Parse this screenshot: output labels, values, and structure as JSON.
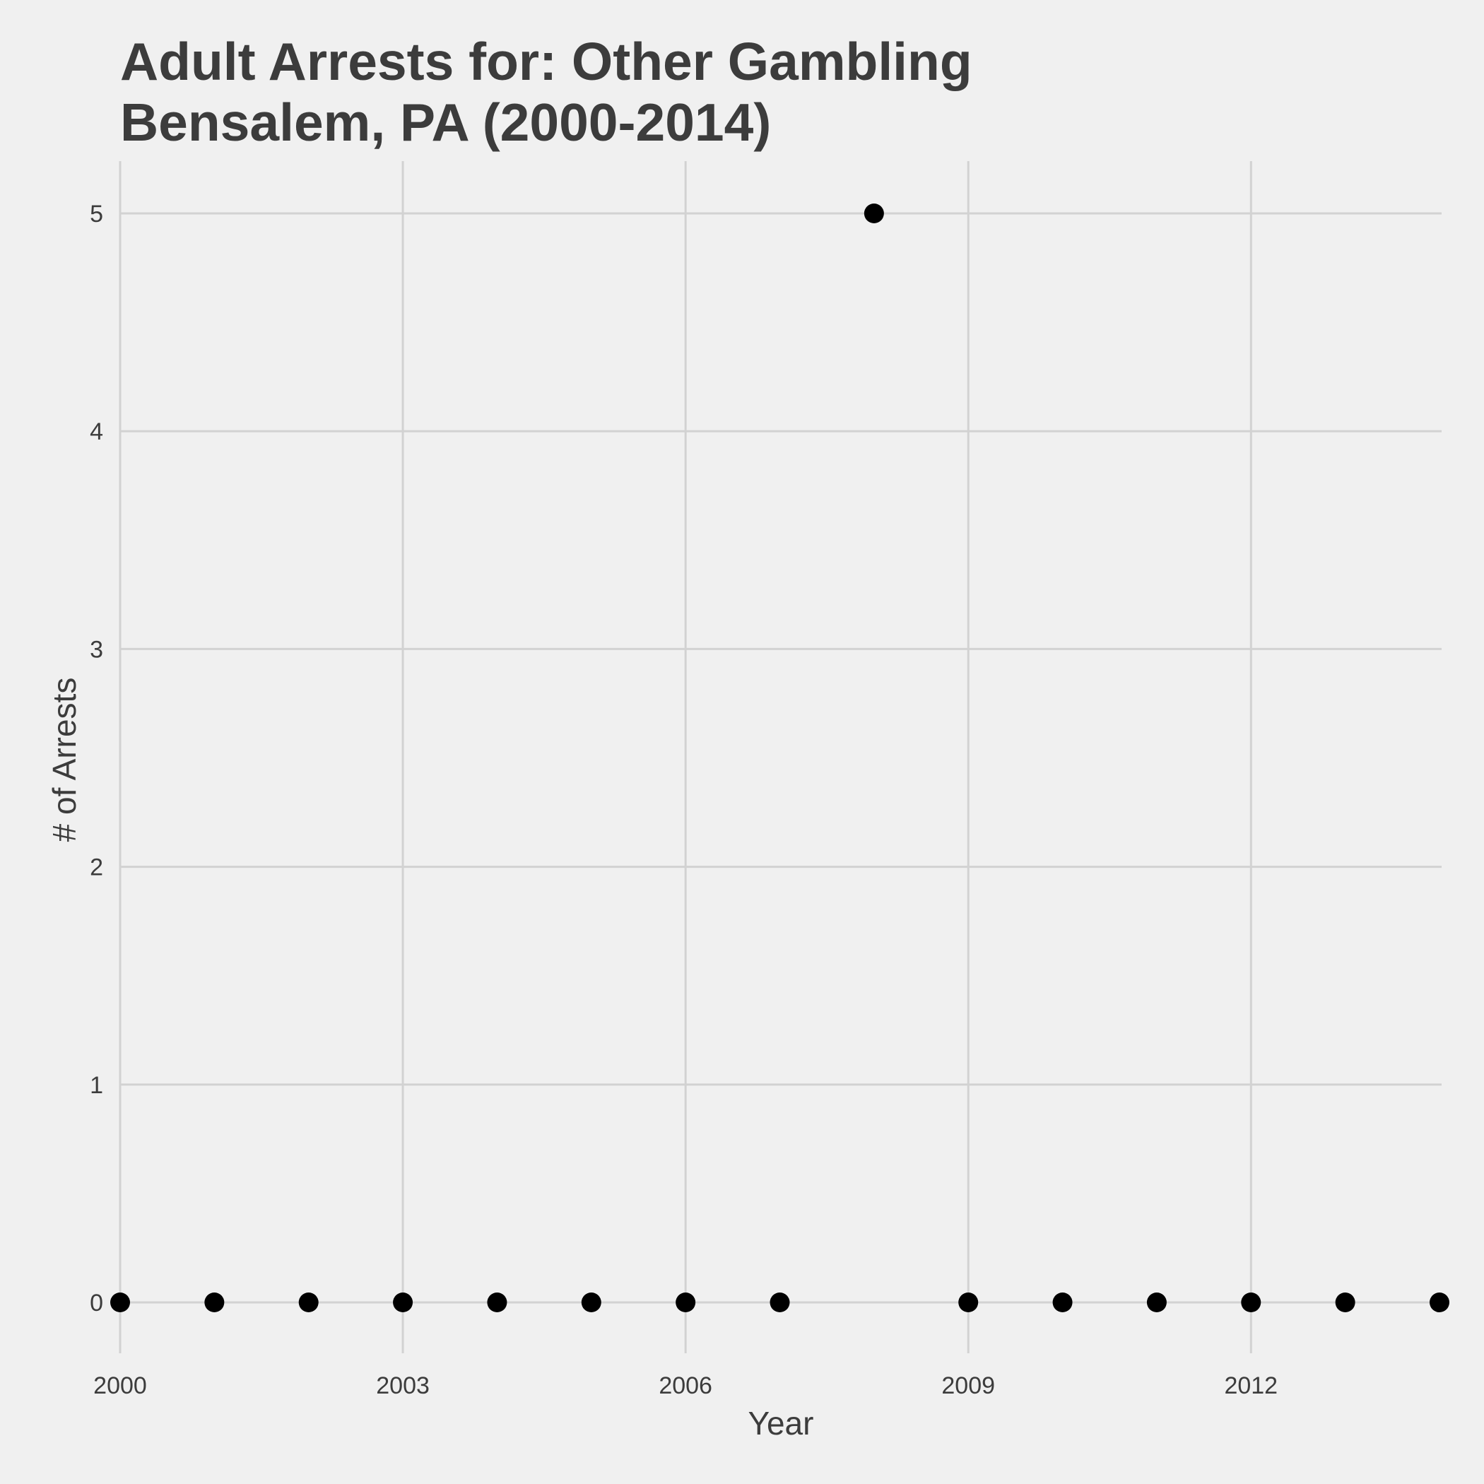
{
  "chart_data": {
    "type": "scatter",
    "title_lines": [
      "Adult Arrests for: Other Gambling",
      "Bensalem, PA (2000-2014)"
    ],
    "xlabel": "Year",
    "ylabel": "# of Arrests",
    "x": [
      2000,
      2001,
      2002,
      2003,
      2004,
      2005,
      2006,
      2007,
      2008,
      2009,
      2010,
      2011,
      2012,
      2013,
      2014
    ],
    "y": [
      0,
      0,
      0,
      0,
      0,
      0,
      0,
      0,
      5,
      0,
      0,
      0,
      0,
      0,
      0
    ],
    "xlim": [
      2000,
      2014
    ],
    "ylim": [
      0,
      5
    ],
    "x_ticks": [
      2000,
      2003,
      2006,
      2009,
      2012
    ],
    "y_ticks": [
      0,
      1,
      2,
      3,
      4,
      5
    ],
    "grid": true,
    "point_color": "#000000",
    "background_color": "#f0f0f0",
    "grid_color": "#d2d2d2",
    "text_color": "#3c3c3c"
  }
}
